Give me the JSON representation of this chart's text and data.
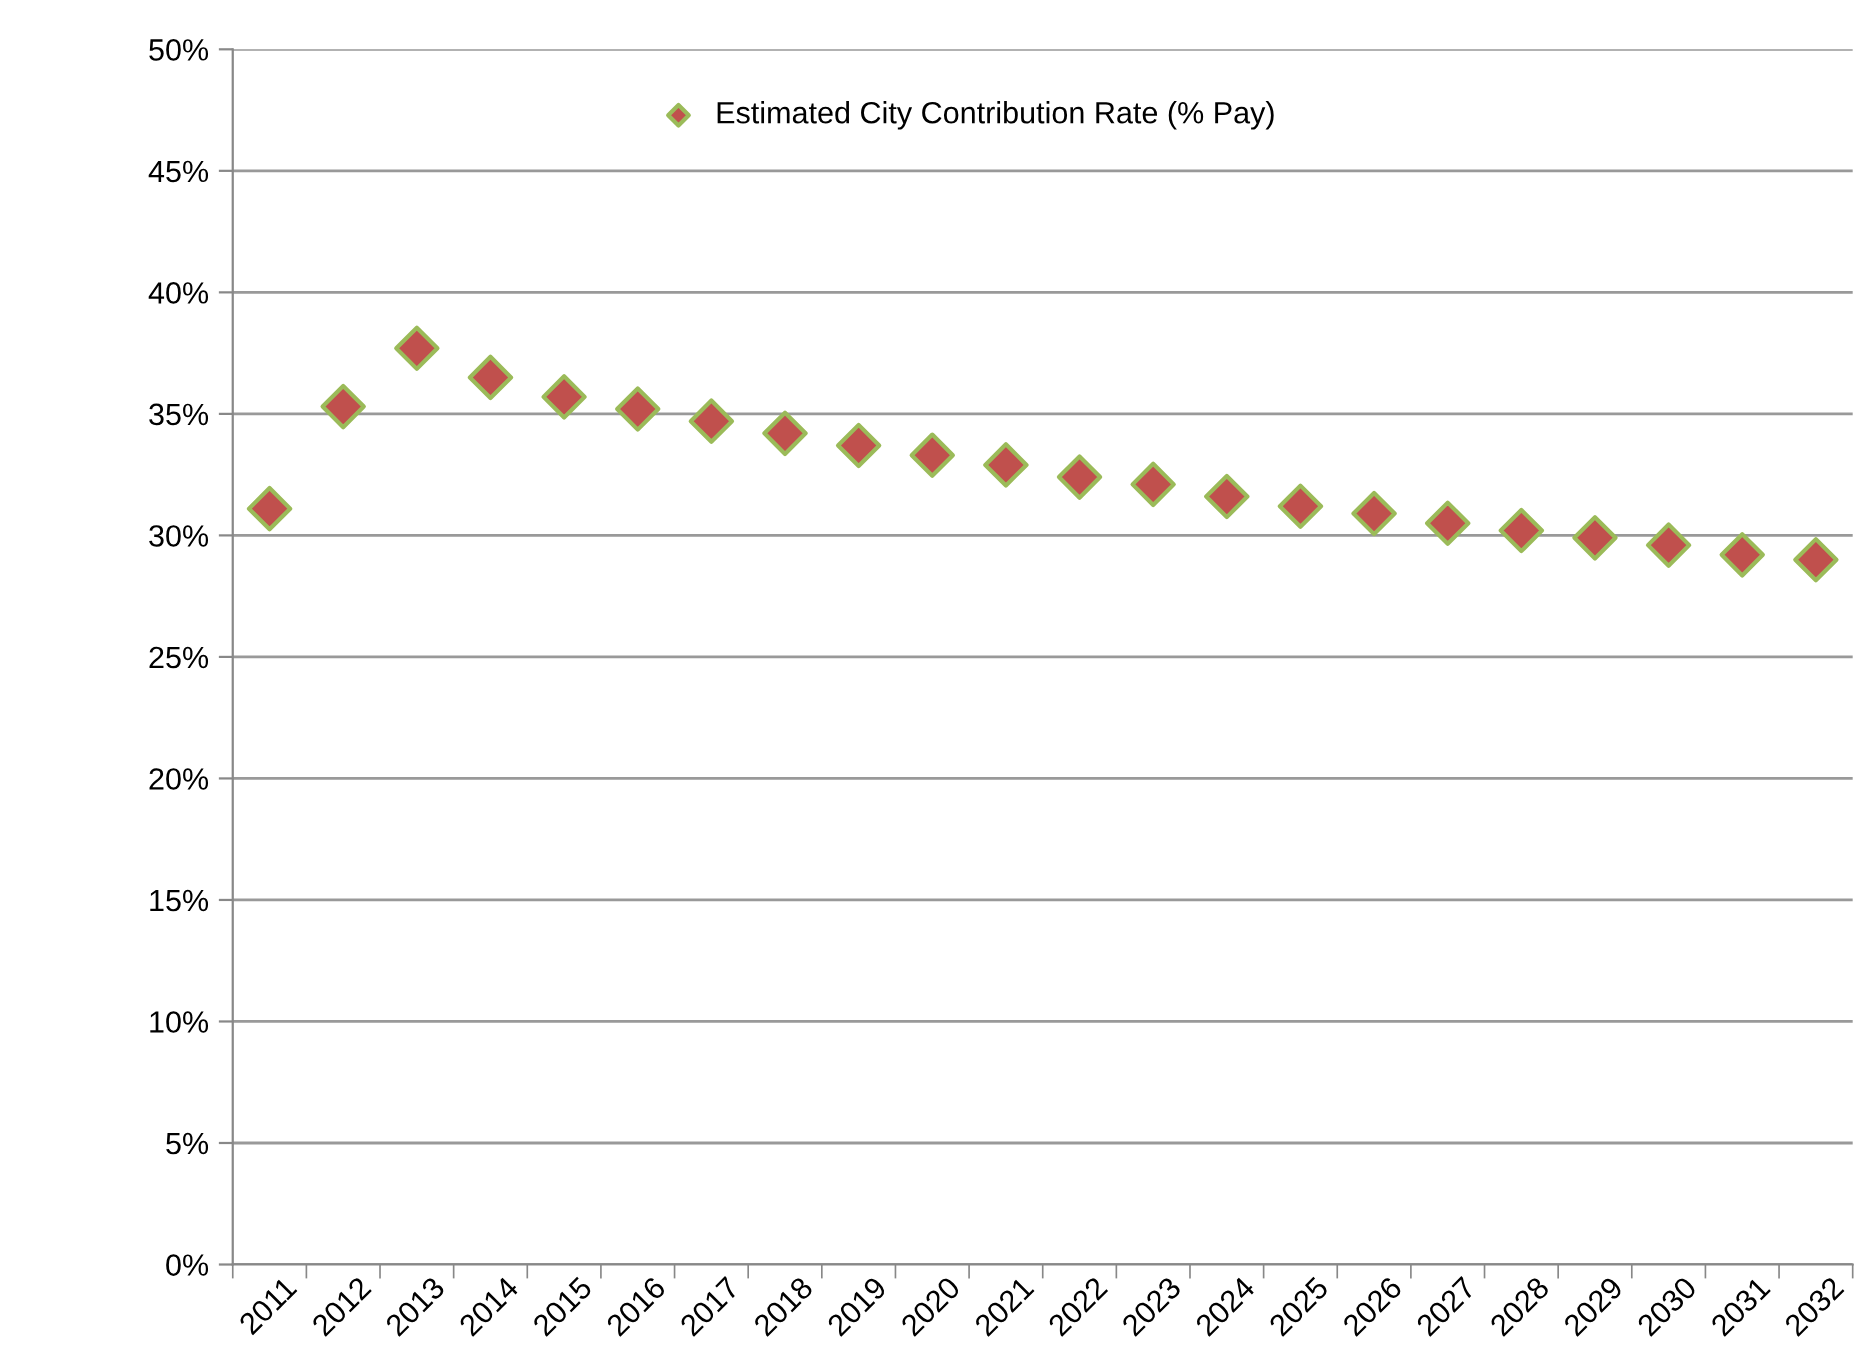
{
  "chart_data": {
    "type": "scatter",
    "categories": [
      "2011",
      "2012",
      "2013",
      "2014",
      "2015",
      "2016",
      "2017",
      "2018",
      "2019",
      "2020",
      "2021",
      "2022",
      "2023",
      "2024",
      "2025",
      "2026",
      "2027",
      "2028",
      "2029",
      "2030",
      "2031",
      "2032"
    ],
    "series": [
      {
        "name": "Estimated City Contribution Rate (% Pay)",
        "color": "#c0504d",
        "values": [
          31.1,
          35.3,
          37.7,
          36.5,
          35.7,
          35.2,
          34.7,
          34.2,
          33.7,
          33.3,
          32.9,
          32.4,
          32.1,
          31.6,
          31.2,
          30.9,
          30.5,
          30.2,
          29.9,
          29.6,
          29.2,
          29.0
        ]
      }
    ],
    "ylim": [
      0,
      50
    ],
    "yticks": [
      {
        "value": 0,
        "label": "0%"
      },
      {
        "value": 5,
        "label": "5%"
      },
      {
        "value": 10,
        "label": "10%"
      },
      {
        "value": 15,
        "label": "15%"
      },
      {
        "value": 20,
        "label": "20%"
      },
      {
        "value": 25,
        "label": "25%"
      },
      {
        "value": 30,
        "label": "30%"
      },
      {
        "value": 35,
        "label": "35%"
      },
      {
        "value": 40,
        "label": "40%"
      },
      {
        "value": 45,
        "label": "45%"
      },
      {
        "value": 50,
        "label": "50%"
      }
    ],
    "grid": "y",
    "legend": "top",
    "marker": "diamond"
  }
}
